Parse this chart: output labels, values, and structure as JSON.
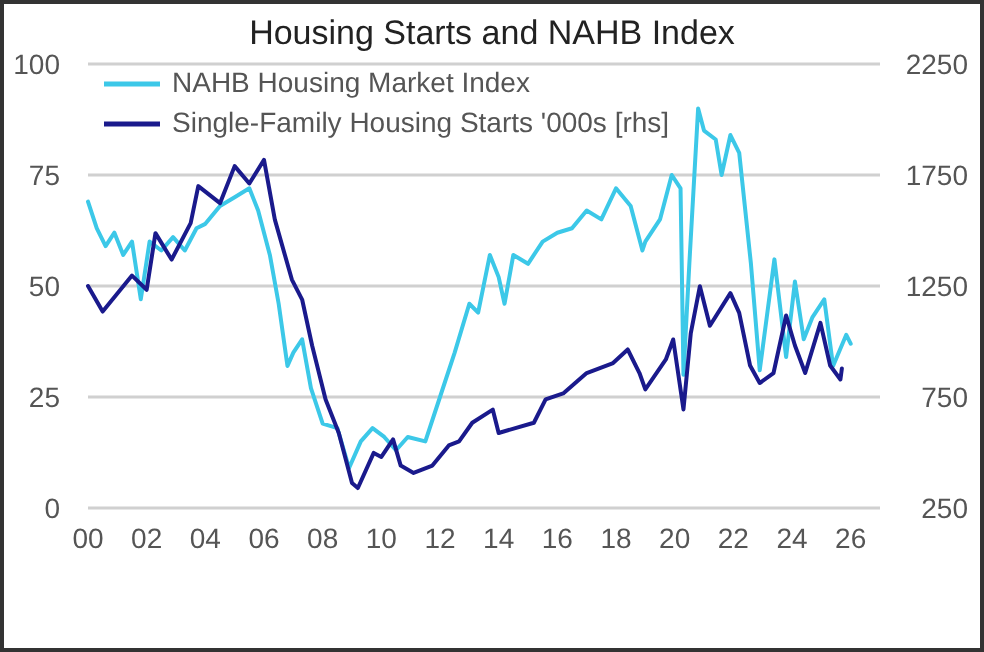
{
  "chart_data": {
    "type": "line",
    "title": "Housing Starts and NAHB Index",
    "xlim": [
      2000,
      2027
    ],
    "xticks": [
      {
        "value": 2000,
        "label": "00"
      },
      {
        "value": 2002,
        "label": "02"
      },
      {
        "value": 2004,
        "label": "04"
      },
      {
        "value": 2006,
        "label": "06"
      },
      {
        "value": 2008,
        "label": "08"
      },
      {
        "value": 2010,
        "label": "10"
      },
      {
        "value": 2012,
        "label": "12"
      },
      {
        "value": 2014,
        "label": "14"
      },
      {
        "value": 2016,
        "label": "16"
      },
      {
        "value": 2018,
        "label": "18"
      },
      {
        "value": 2020,
        "label": "20"
      },
      {
        "value": 2022,
        "label": "22"
      },
      {
        "value": 2024,
        "label": "24"
      },
      {
        "value": 2026,
        "label": "26"
      }
    ],
    "ylim": [
      0,
      100
    ],
    "yticks": [
      0,
      25,
      50,
      75,
      100
    ],
    "y2lim": [
      250,
      2250
    ],
    "y2ticks": [
      250,
      750,
      1250,
      1750,
      2250
    ],
    "grid": "y",
    "legend": "top left",
    "marker": "none",
    "line_style": "solid",
    "series": [
      {
        "name": "NAHB Housing Market Index",
        "color": "#3cc8e8",
        "x": [
          2000.0,
          2000.3,
          2000.6,
          2000.9,
          2001.2,
          2001.5,
          2001.8,
          2002.1,
          2002.5,
          2002.9,
          2003.3,
          2003.7,
          2004.0,
          2004.5,
          2005.0,
          2005.5,
          2005.8,
          2006.2,
          2006.5,
          2006.8,
          2007.0,
          2007.3,
          2007.6,
          2008.0,
          2008.5,
          2008.9,
          2009.3,
          2009.7,
          2010.1,
          2010.5,
          2010.9,
          2011.5,
          2012.0,
          2012.5,
          2013.0,
          2013.3,
          2013.7,
          2014.0,
          2014.2,
          2014.5,
          2015.0,
          2015.5,
          2016.0,
          2016.5,
          2017.0,
          2017.5,
          2018.0,
          2018.5,
          2018.9,
          2019.0,
          2019.5,
          2019.9,
          2020.2,
          2020.3,
          2020.5,
          2020.8,
          2021.0,
          2021.4,
          2021.6,
          2021.9,
          2022.2,
          2022.6,
          2022.9,
          2023.4,
          2023.8,
          2024.1,
          2024.4,
          2024.7,
          2025.1,
          2025.4,
          2025.85,
          2026.0
        ],
        "values": [
          69,
          63,
          59,
          62,
          57,
          60,
          47,
          60,
          58,
          61,
          58,
          63,
          64,
          68,
          70,
          72,
          67,
          57,
          46,
          32,
          35,
          38,
          27,
          19,
          18,
          9,
          15,
          18,
          16,
          13,
          16,
          15,
          25,
          35,
          46,
          44,
          57,
          52,
          46,
          57,
          55,
          60,
          62,
          63,
          67,
          65,
          72,
          68,
          58,
          60,
          65,
          75,
          72,
          30,
          55,
          90,
          85,
          83,
          75,
          84,
          80,
          55,
          31,
          56,
          34,
          51,
          38,
          43,
          47,
          32,
          39,
          37
        ]
      },
      {
        "name": "Single-Family Housing Starts '000s [rhs]",
        "color": "#1a1a8c",
        "axis": "y2",
        "x": [
          2000.0,
          2000.5,
          2001.5,
          2002.0,
          2002.3,
          2002.85,
          2003.5,
          2003.76,
          2004.5,
          2005.0,
          2005.5,
          2006.0,
          2006.37,
          2006.95,
          2007.3,
          2007.64,
          2008.1,
          2008.55,
          2009.0,
          2009.2,
          2009.74,
          2010.0,
          2010.4,
          2010.66,
          2011.1,
          2011.74,
          2012.3,
          2012.65,
          2013.1,
          2013.8,
          2014.0,
          2015.2,
          2015.6,
          2016.2,
          2017.0,
          2017.9,
          2018.4,
          2018.8,
          2019.0,
          2019.7,
          2019.95,
          2020.3,
          2020.55,
          2020.86,
          2021.2,
          2021.9,
          2022.2,
          2022.57,
          2022.9,
          2023.37,
          2023.8,
          2024.1,
          2024.45,
          2024.97,
          2025.3,
          2025.65,
          2025.7
        ],
        "values": [
          1250,
          1135,
          1297,
          1233,
          1488,
          1369,
          1533,
          1700,
          1623,
          1790,
          1712,
          1818,
          1549,
          1279,
          1189,
          982,
          739,
          588,
          363,
          340,
          498,
          480,
          559,
          441,
          408,
          441,
          532,
          550,
          634,
          693,
          588,
          634,
          739,
          766,
          858,
          903,
          964,
          858,
          784,
          919,
          1009,
          694,
          1038,
          1249,
          1071,
          1218,
          1129,
          892,
          813,
          858,
          1117,
          982,
          858,
          1084,
          892,
          829,
          878
        ]
      }
    ]
  }
}
